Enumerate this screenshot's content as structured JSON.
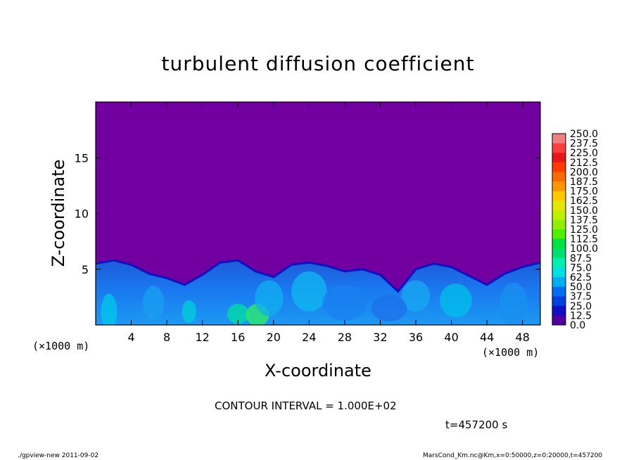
{
  "chart_data": {
    "type": "heatmap",
    "title": "turbulent diffusion coefficient",
    "xlabel": "X-coordinate",
    "ylabel": "Z-coordinate",
    "x_unit": "(×1000 m)",
    "y_unit": "(×1000 m)",
    "xlim": [
      0,
      50
    ],
    "ylim": [
      0,
      20
    ],
    "x_ticks": [
      4,
      8,
      12,
      16,
      20,
      24,
      28,
      32,
      36,
      40,
      44,
      48
    ],
    "y_ticks": [
      5,
      10,
      15
    ],
    "colorbar": {
      "levels": [
        "250.0",
        "237.5",
        "225.0",
        "212.5",
        "200.0",
        "187.5",
        "175.0",
        "162.5",
        "150.0",
        "137.5",
        "125.0",
        "112.5",
        "100.0",
        "87.5",
        "75.0",
        "62.5",
        "50.0",
        "37.5",
        "25.0",
        "12.5",
        "0.0"
      ],
      "colors": [
        "#f08080",
        "#ff4040",
        "#e81818",
        "#ff3a00",
        "#ff6a00",
        "#ff9600",
        "#ffc800",
        "#e6e600",
        "#c0f000",
        "#90f000",
        "#50f000",
        "#00e040",
        "#00e070",
        "#00f0b0",
        "#00e0e0",
        "#00b0f0",
        "#0070f0",
        "#0040e0",
        "#1010c0",
        "#5000a0"
      ]
    },
    "background_value_color": "#7200a0",
    "turbulent_layer_top_profile": [
      {
        "x": 0,
        "z": 5.5
      },
      {
        "x": 2,
        "z": 5.8
      },
      {
        "x": 4,
        "z": 5.4
      },
      {
        "x": 6,
        "z": 4.6
      },
      {
        "x": 8,
        "z": 4.2
      },
      {
        "x": 10,
        "z": 3.6
      },
      {
        "x": 12,
        "z": 4.5
      },
      {
        "x": 14,
        "z": 5.6
      },
      {
        "x": 16,
        "z": 5.8
      },
      {
        "x": 18,
        "z": 4.8
      },
      {
        "x": 20,
        "z": 4.3
      },
      {
        "x": 22,
        "z": 5.4
      },
      {
        "x": 24,
        "z": 5.6
      },
      {
        "x": 26,
        "z": 5.3
      },
      {
        "x": 28,
        "z": 4.8
      },
      {
        "x": 30,
        "z": 5.0
      },
      {
        "x": 32,
        "z": 4.5
      },
      {
        "x": 34,
        "z": 3.0
      },
      {
        "x": 36,
        "z": 5.0
      },
      {
        "x": 38,
        "z": 5.5
      },
      {
        "x": 40,
        "z": 5.2
      },
      {
        "x": 42,
        "z": 4.4
      },
      {
        "x": 44,
        "z": 3.6
      },
      {
        "x": 46,
        "z": 4.6
      },
      {
        "x": 48,
        "z": 5.2
      },
      {
        "x": 50,
        "z": 5.6
      }
    ],
    "contour_interval_text": "CONTOUR INTERVAL = 1.000E+02",
    "time_text": "t=457200 s"
  },
  "footer": {
    "left": "./gpview-new  2011-09-02",
    "right": "MarsCond_Km.nc@Km,x=0:50000,z=0:20000,t=457200"
  }
}
